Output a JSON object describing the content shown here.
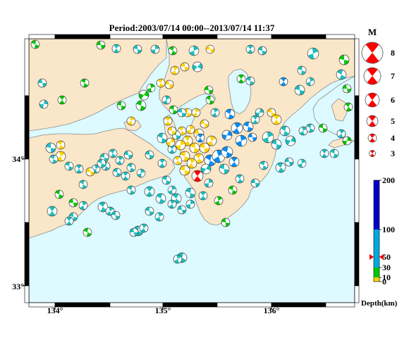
{
  "title": "Period:2003/07/14 00:00--2013/07/14 11:37",
  "map": {
    "lat_labels": [
      "34°",
      "33°"
    ],
    "lon_labels": [
      "134°",
      "135°",
      "136°"
    ],
    "colors": {
      "sea": "#dcfaff",
      "land": "#fae6c8",
      "coast": "#8c8c8c"
    }
  },
  "magnitude_legend": {
    "heading": "M",
    "items": [
      {
        "label": "8",
        "m": 8
      },
      {
        "label": "7",
        "m": 7
      },
      {
        "label": "6",
        "m": 6
      },
      {
        "label": "5",
        "m": 5
      },
      {
        "label": "4",
        "m": 4
      },
      {
        "label": "3",
        "m": 3
      }
    ],
    "color": "#ff0000"
  },
  "depth_legend": {
    "caption": "Depth(km)",
    "ticks": [
      "200",
      "100",
      "50",
      "30",
      "10",
      "0"
    ],
    "segments": [
      {
        "from": 0,
        "to": 10,
        "color": "#ffd200"
      },
      {
        "from": 10,
        "to": 30,
        "color": "#00c800"
      },
      {
        "from": 30,
        "to": 100,
        "color": "#00aadc"
      },
      {
        "from": 100,
        "to": 200,
        "color": "#0000c8"
      }
    ],
    "marker_depth": 50,
    "marker_color": "#e60000"
  },
  "mechanism_colors": {
    "yellow": "#ffd200",
    "green": "#00c800",
    "cyan": "#1ebebe",
    "blue": "#0a8cf0",
    "red": "#ff0000"
  }
}
